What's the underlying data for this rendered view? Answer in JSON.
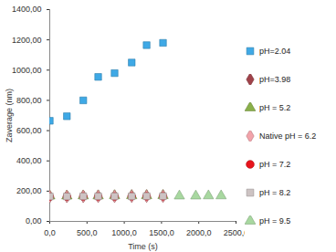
{
  "chart_data": {
    "type": "scatter",
    "x_label": "Time (s)",
    "y_label": "Zaverage (nm)",
    "xlim": [
      0,
      2500
    ],
    "xticks": [
      {
        "value": 0,
        "label": "0,0"
      },
      {
        "value": 500,
        "label": "500,0"
      },
      {
        "value": 1000,
        "label": "1000,0"
      },
      {
        "value": 1500,
        "label": "1500,0"
      },
      {
        "value": 2000,
        "label": "2000,0"
      },
      {
        "value": 2500,
        "label": "2500,0"
      }
    ],
    "ylim": [
      0,
      1400
    ],
    "yticks": [
      {
        "value": 0,
        "label": "0,00"
      },
      {
        "value": 200,
        "label": "200,00"
      },
      {
        "value": 400,
        "label": "400,00"
      },
      {
        "value": 600,
        "label": "600,00"
      },
      {
        "value": 800,
        "label": "800,00"
      },
      {
        "value": 1000,
        "label": "1000,00"
      },
      {
        "value": 1200,
        "label": "1200,00"
      },
      {
        "value": 1400,
        "label": "1400,00"
      }
    ],
    "grid": false,
    "legend": "right",
    "series": [
      {
        "name": "pH=2.04",
        "color": "#3fa9e6",
        "marker": "square",
        "x": [
          0,
          230,
          450,
          650,
          870,
          1100,
          1300,
          1520
        ],
        "values": [
          665,
          695,
          800,
          955,
          980,
          1050,
          1165,
          1180
        ]
      },
      {
        "name": "pH=3.98",
        "color": "#a0424a",
        "marker": "diamond",
        "x": [
          0,
          230,
          450,
          650,
          870,
          1100,
          1300,
          1520
        ],
        "values": [
          165,
          166,
          166,
          167,
          167,
          168,
          168,
          168
        ]
      },
      {
        "name": "pH = 5.2",
        "color": "#8ab04a",
        "marker": "triangle",
        "x": [
          0,
          230,
          450,
          650,
          870,
          1100,
          1300,
          1520
        ],
        "values": [
          168,
          168,
          169,
          169,
          170,
          170,
          170,
          171
        ]
      },
      {
        "name": "Native pH = 6.2",
        "color": "#f2a3aa",
        "marker": "diamond",
        "x": [
          0,
          230,
          450,
          650,
          870,
          1100,
          1300,
          1520
        ],
        "values": [
          165,
          165,
          166,
          166,
          166,
          167,
          167,
          167
        ]
      },
      {
        "name": "pH = 7.2",
        "color": "#e8141c",
        "marker": "circle",
        "x": [
          0,
          230,
          450,
          650,
          870,
          1100,
          1300,
          1520
        ],
        "values": [
          164,
          164,
          165,
          165,
          165,
          166,
          166,
          166
        ]
      },
      {
        "name": "pH = 8.2",
        "color": "#cdc3c3",
        "marker": "square",
        "x": [
          0,
          230,
          450,
          650,
          870,
          1100,
          1300,
          1520
        ],
        "values": [
          165,
          165,
          166,
          166,
          166,
          166,
          167,
          167
        ]
      },
      {
        "name": "pH = 9.5",
        "color": "#a8d8a0",
        "marker": "triangle",
        "x": [
          1740,
          1960,
          2130,
          2300
        ],
        "values": [
          168,
          168,
          169,
          169
        ]
      }
    ]
  }
}
